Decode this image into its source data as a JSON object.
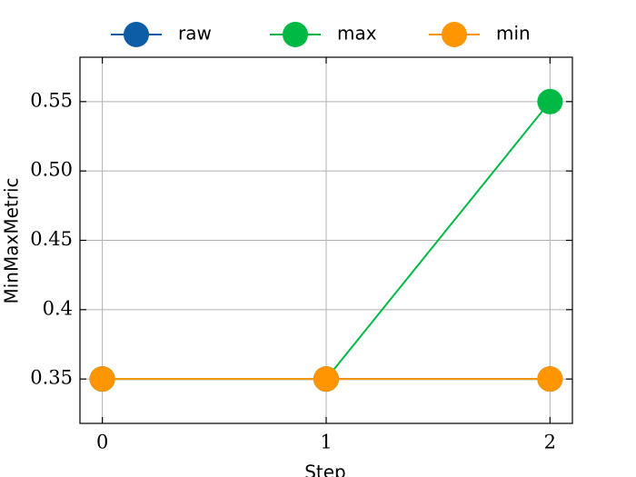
{
  "chart_data": {
    "type": "line",
    "x": [
      0,
      1,
      2
    ],
    "series": [
      {
        "name": "raw",
        "color": "#0c5da5",
        "values": [
          0.35,
          0.35,
          0.35
        ]
      },
      {
        "name": "max",
        "color": "#00b945",
        "values": [
          0.35,
          0.35,
          0.55
        ]
      },
      {
        "name": "min",
        "color": "#ff9500",
        "values": [
          0.35,
          0.35,
          0.35
        ]
      }
    ],
    "x_label": "Step",
    "y_label": "MinMaxMetric",
    "xlim": [
      -0.1,
      2.1
    ],
    "xticks": [
      0,
      1,
      2
    ],
    "ylim": [
      0.318,
      0.582
    ],
    "yticks": [
      0.35,
      0.4,
      0.45,
      {
        "value": 0.5,
        "label": "0.50"
      },
      0.55
    ],
    "grid": true,
    "legend": "top"
  }
}
